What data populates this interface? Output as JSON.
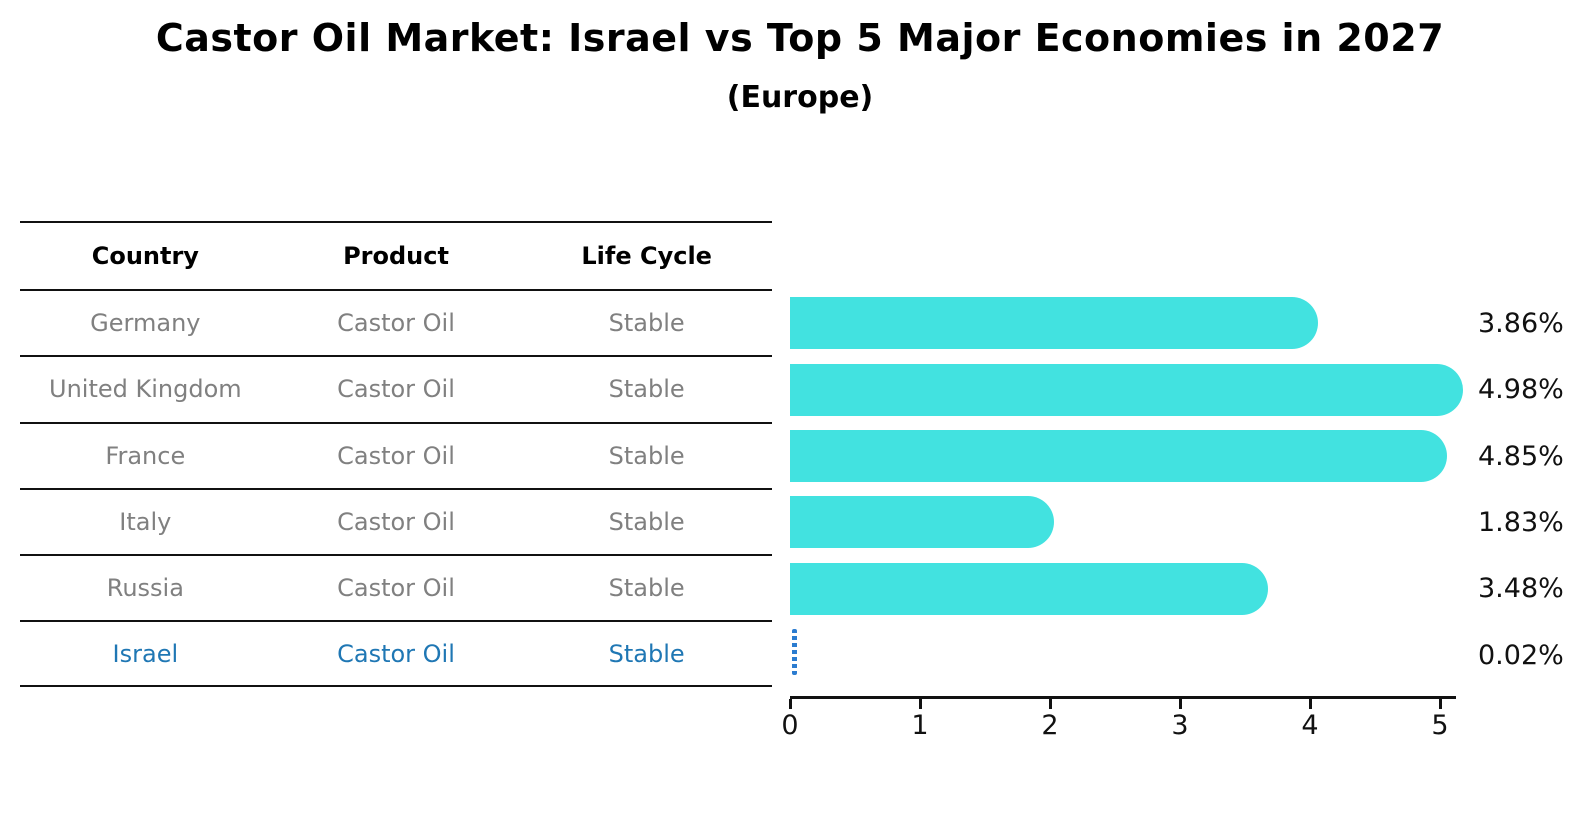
{
  "header": {
    "title": "Castor Oil Market: Israel vs Top 5 Major Economies in 2027",
    "subtitle": "(Europe)"
  },
  "table": {
    "columns": [
      "Country",
      "Product",
      "Life Cycle"
    ],
    "rows": [
      {
        "country": "Germany",
        "product": "Castor Oil",
        "life_cycle": "Stable"
      },
      {
        "country": "United Kingdom",
        "product": "Castor Oil",
        "life_cycle": "Stable"
      },
      {
        "country": "France",
        "product": "Castor Oil",
        "life_cycle": "Stable"
      },
      {
        "country": "Italy",
        "product": "Castor Oil",
        "life_cycle": "Stable"
      },
      {
        "country": "Russia",
        "product": "Castor Oil",
        "life_cycle": "Stable"
      },
      {
        "country": "Israel",
        "product": "Castor Oil",
        "life_cycle": "Stable"
      }
    ]
  },
  "chart_data": {
    "type": "bar",
    "orientation": "horizontal",
    "title": "Castor Oil Market: Israel vs Top 5 Major Economies in 2027",
    "subtitle": "(Europe)",
    "categories": [
      "Germany",
      "United Kingdom",
      "France",
      "Italy",
      "Russia",
      "Israel"
    ],
    "values": [
      3.86,
      4.98,
      4.85,
      1.83,
      3.48,
      0.02
    ],
    "value_labels": [
      "3.86%",
      "4.98%",
      "4.85%",
      "1.83%",
      "3.48%",
      "0.02%"
    ],
    "x_ticks": [
      "0",
      "1",
      "2",
      "3",
      "4",
      "5"
    ],
    "xlim": [
      0,
      5.2
    ],
    "xlabel": "",
    "ylabel": "",
    "grid": false,
    "legend": "none",
    "bar_color": "#42e2e0",
    "highlight_category": "Israel",
    "highlight_color": "#1f77b4",
    "marker_style_israel": "dotted-line",
    "axis_color": "#111111",
    "row_text_color": "#808080"
  }
}
